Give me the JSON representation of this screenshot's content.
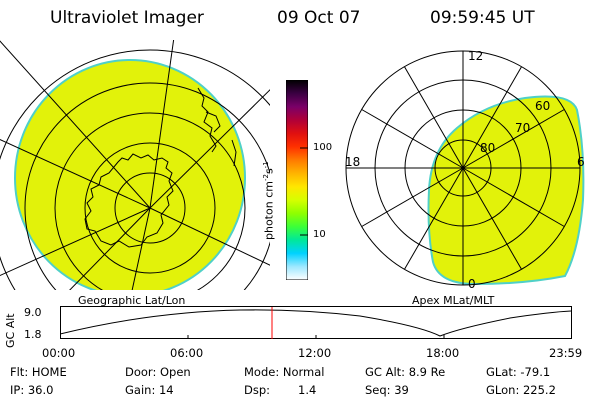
{
  "header": {
    "instrument": "Ultraviolet Imager",
    "date": "09 Oct 07",
    "time": "09:59:45 UT"
  },
  "colorbar": {
    "unit_label": "photon cm",
    "unit_exp1": "-2",
    "unit_s": "s",
    "unit_exp2": "-1",
    "ticks": [
      "100",
      "10"
    ],
    "colors": [
      "#000000",
      "#3a0042",
      "#7a0068",
      "#b00038",
      "#e01010",
      "#ff3000",
      "#ff7a00",
      "#ffb400",
      "#ffe600",
      "#d6ff00",
      "#8fff00",
      "#3cff38",
      "#00e89a",
      "#00d2ff",
      "#9ee8ff",
      "#ffffff"
    ]
  },
  "maps": {
    "left_label": "Geographic Lat/Lon",
    "right_label": "Apex MLat/MLT",
    "fill_color": "#e2f20a",
    "edge_color": "#4fd0c8",
    "mlt_labels": {
      "top": "12",
      "left": "18",
      "right": "6",
      "bottom": "0"
    },
    "mlat_labels": [
      "60",
      "70",
      "80"
    ]
  },
  "altitude_plot": {
    "ylabel": "GC Alt",
    "yticks": [
      "9.0",
      "1.8"
    ],
    "xticks": [
      "00:00",
      "06:00",
      "12:00",
      "18:00",
      "23:59"
    ],
    "current_time_marker_color": "#ff0000"
  },
  "status": {
    "flt": "Flt: HOME",
    "door": "Door: Open",
    "mode": "Mode: Normal",
    "gcalt": "GC Alt: 8.9 Re",
    "glat": "GLat: -79.1",
    "ip": "IP: 36.0",
    "gain": "Gain: 14",
    "dsp_label": "Dsp:",
    "dsp_value": "1.4",
    "seq": "Seq: 39",
    "glon": "GLon: 225.2"
  }
}
